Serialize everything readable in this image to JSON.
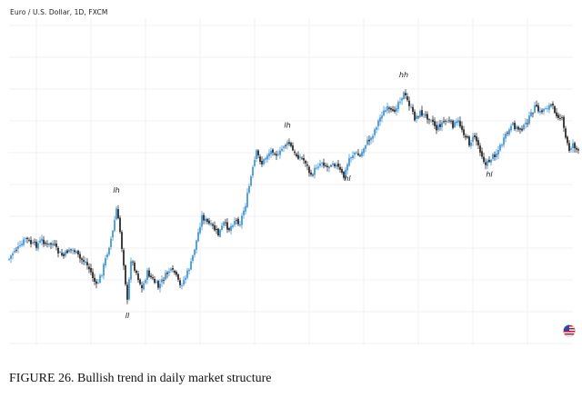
{
  "header": {
    "title": "Euro / U.S. Dollar, 1D, FXCM"
  },
  "caption": "FIGURE 26. Bullish trend in daily market structure",
  "icons": {
    "flag": "us-flag-icon"
  },
  "colors": {
    "up": "#2a8bd8",
    "down": "#111111",
    "grid": "#f0f0f0"
  },
  "chart_data": {
    "type": "candlestick",
    "title": "Euro / U.S. Dollar, 1D, FXCM",
    "xlabel": "",
    "ylabel": "",
    "grid": true,
    "series": [
      {
        "name": "Euro / U.S. Dollar",
        "close_anchors": [
          [
            0,
            285
          ],
          [
            6,
            275
          ],
          [
            12,
            272
          ],
          [
            18,
            262
          ],
          [
            24,
            268
          ],
          [
            30,
            270
          ],
          [
            36,
            264
          ],
          [
            42,
            270
          ],
          [
            48,
            268
          ],
          [
            54,
            278
          ],
          [
            60,
            282
          ],
          [
            66,
            274
          ],
          [
            72,
            276
          ],
          [
            78,
            285
          ],
          [
            84,
            288
          ],
          [
            90,
            300
          ],
          [
            96,
            315
          ],
          [
            102,
            300
          ],
          [
            108,
            278
          ],
          [
            114,
            255
          ],
          [
            118,
            230
          ],
          [
            122,
            255
          ],
          [
            126,
            290
          ],
          [
            130,
            332
          ],
          [
            134,
            285
          ],
          [
            140,
            300
          ],
          [
            146,
            318
          ],
          [
            152,
            300
          ],
          [
            158,
            308
          ],
          [
            164,
            316
          ],
          [
            170,
            306
          ],
          [
            176,
            298
          ],
          [
            182,
            300
          ],
          [
            188,
            315
          ],
          [
            194,
            305
          ],
          [
            200,
            290
          ],
          [
            206,
            265
          ],
          [
            212,
            238
          ],
          [
            218,
            245
          ],
          [
            224,
            250
          ],
          [
            230,
            258
          ],
          [
            236,
            246
          ],
          [
            242,
            252
          ],
          [
            248,
            242
          ],
          [
            254,
            245
          ],
          [
            260,
            225
          ],
          [
            266,
            195
          ],
          [
            272,
            168
          ],
          [
            278,
            180
          ],
          [
            284,
            170
          ],
          [
            290,
            165
          ],
          [
            296,
            172
          ],
          [
            302,
            160
          ],
          [
            308,
            158
          ],
          [
            314,
            170
          ],
          [
            320,
            173
          ],
          [
            326,
            178
          ],
          [
            332,
            195
          ],
          [
            338,
            183
          ],
          [
            344,
            178
          ],
          [
            350,
            184
          ],
          [
            356,
            178
          ],
          [
            362,
            185
          ],
          [
            368,
            195
          ],
          [
            374,
            174
          ],
          [
            380,
            168
          ],
          [
            386,
            172
          ],
          [
            392,
            158
          ],
          [
            398,
            152
          ],
          [
            404,
            138
          ],
          [
            410,
            125
          ],
          [
            416,
            120
          ],
          [
            422,
            125
          ],
          [
            428,
            112
          ],
          [
            434,
            103
          ],
          [
            440,
            115
          ],
          [
            446,
            130
          ],
          [
            452,
            124
          ],
          [
            458,
            128
          ],
          [
            464,
            130
          ],
          [
            470,
            142
          ],
          [
            476,
            135
          ],
          [
            482,
            133
          ],
          [
            488,
            138
          ],
          [
            494,
            134
          ],
          [
            500,
            146
          ],
          [
            506,
            158
          ],
          [
            512,
            150
          ],
          [
            518,
            165
          ],
          [
            524,
            182
          ],
          [
            530,
            174
          ],
          [
            536,
            168
          ],
          [
            542,
            158
          ],
          [
            548,
            146
          ],
          [
            554,
            138
          ],
          [
            560,
            142
          ],
          [
            566,
            140
          ],
          [
            572,
            130
          ],
          [
            578,
            118
          ],
          [
            584,
            124
          ],
          [
            590,
            118
          ],
          [
            596,
            116
          ],
          [
            602,
            125
          ],
          [
            608,
            132
          ],
          [
            612,
            152
          ],
          [
            616,
            165
          ],
          [
            620,
            158
          ],
          [
            626,
            168
          ]
        ]
      }
    ],
    "annotations": [
      {
        "text": "lh",
        "x": 118
      },
      {
        "text": "ll",
        "x": 130
      },
      {
        "text": "lh",
        "x": 306
      },
      {
        "text": "hl",
        "x": 372
      },
      {
        "text": "hh",
        "x": 434
      },
      {
        "text": "hl",
        "x": 528
      }
    ]
  }
}
